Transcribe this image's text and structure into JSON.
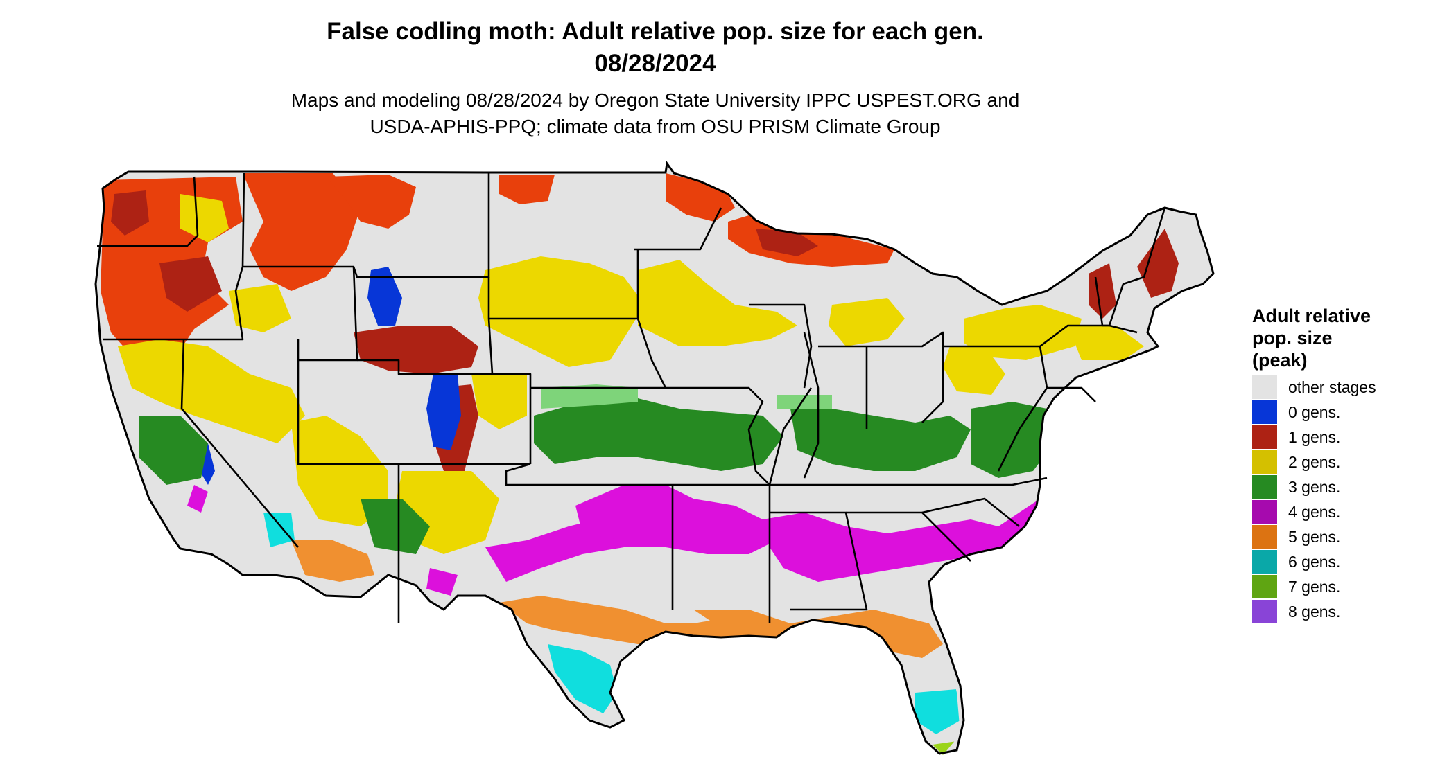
{
  "title": {
    "line1": "False codling moth: Adult relative pop. size for each gen.",
    "line2": "08/28/2024"
  },
  "subtitle": {
    "line1": "Maps and modeling 08/28/2024 by Oregon State University IPPC USPEST.ORG and",
    "line2": "USDA-APHIS-PPQ; climate data from OSU PRISM Climate Group"
  },
  "legend": {
    "title_l1": "Adult relative",
    "title_l2": "pop. size",
    "title_l3": "(peak)",
    "items": [
      {
        "label": "other stages",
        "color": "#e3e3e3"
      },
      {
        "label": "0 gens.",
        "color": "#0736d7"
      },
      {
        "label": "1 gens.",
        "color": "#ad2214"
      },
      {
        "label": "2 gens.",
        "color": "#d4c000"
      },
      {
        "label": "3 gens.",
        "color": "#268a22"
      },
      {
        "label": "4 gens.",
        "color": "#a60aae"
      },
      {
        "label": "5 gens.",
        "color": "#dc7312"
      },
      {
        "label": "6 gens.",
        "color": "#0aa8a8"
      },
      {
        "label": "7 gens.",
        "color": "#5fa512"
      },
      {
        "label": "8 gens.",
        "color": "#8944d7"
      }
    ]
  },
  "map_colors": {
    "background_land": "#e3e3e3",
    "one_gen_bright": "#e8400c",
    "two_gen_bright": "#ecd800",
    "three_gen_light": "#7ed47a",
    "four_gen_bright": "#dc10dc",
    "five_gen_bright": "#f09030",
    "six_gen_bright": "#10dede",
    "seven_gen_bright": "#9ad41a"
  }
}
